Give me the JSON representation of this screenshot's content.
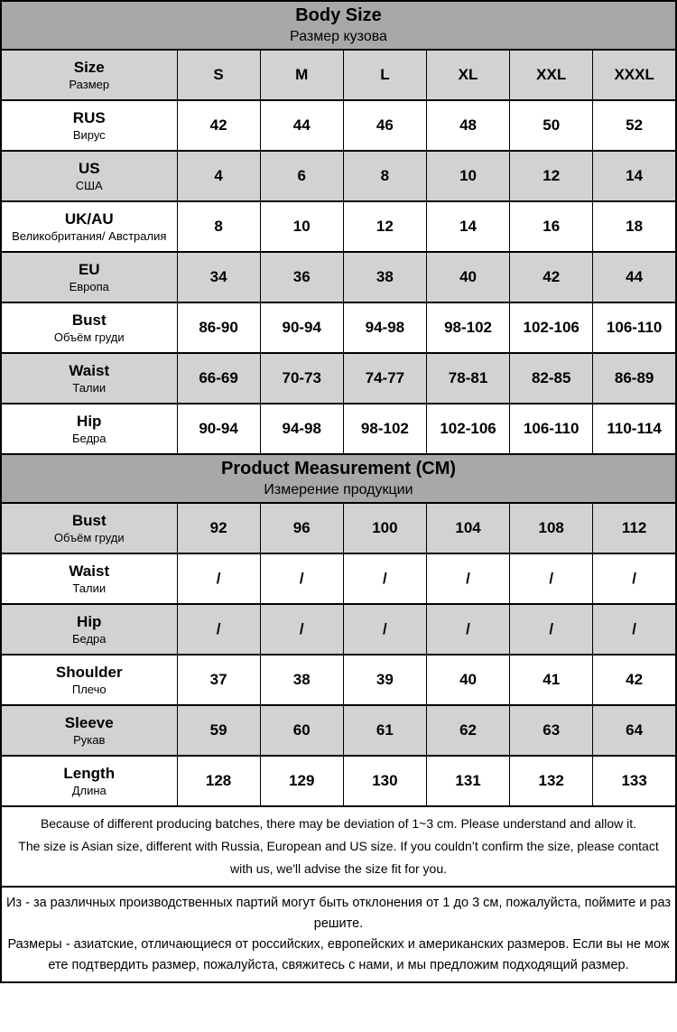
{
  "colors": {
    "header_bg": "#a8a8a8",
    "shaded_bg": "#d2d2d2",
    "plain_bg": "#ffffff",
    "border_color": "#000000",
    "text_color": "#000000"
  },
  "sections": [
    {
      "title": "Body Size",
      "subtitle": "Размер кузова",
      "rows": [
        {
          "label": "Size",
          "sublabel": "Размер",
          "values": [
            "S",
            "M",
            "L",
            "XL",
            "XXL",
            "XXXL"
          ]
        },
        {
          "label": "RUS",
          "sublabel": "Вирус",
          "values": [
            "42",
            "44",
            "46",
            "48",
            "50",
            "52"
          ]
        },
        {
          "label": "US",
          "sublabel": "США",
          "values": [
            "4",
            "6",
            "8",
            "10",
            "12",
            "14"
          ]
        },
        {
          "label": "UK/AU",
          "sublabel": "Великобритания/ Австралия",
          "values": [
            "8",
            "10",
            "12",
            "14",
            "16",
            "18"
          ]
        },
        {
          "label": "EU",
          "sublabel": "Европа",
          "values": [
            "34",
            "36",
            "38",
            "40",
            "42",
            "44"
          ]
        },
        {
          "label": "Bust",
          "sublabel": "Объём груди",
          "values": [
            "86-90",
            "90-94",
            "94-98",
            "98-102",
            "102-106",
            "106-110"
          ]
        },
        {
          "label": "Waist",
          "sublabel": "Талии",
          "values": [
            "66-69",
            "70-73",
            "74-77",
            "78-81",
            "82-85",
            "86-89"
          ]
        },
        {
          "label": "Hip",
          "sublabel": "Бедра",
          "values": [
            "90-94",
            "94-98",
            "98-102",
            "102-106",
            "106-110",
            "110-114"
          ]
        }
      ]
    },
    {
      "title": "Product Measurement (CM)",
      "subtitle": "Измерение продукции",
      "rows": [
        {
          "label": "Bust",
          "sublabel": "Объём груди",
          "values": [
            "92",
            "96",
            "100",
            "104",
            "108",
            "112"
          ]
        },
        {
          "label": "Waist",
          "sublabel": "Талии",
          "values": [
            "/",
            "/",
            "/",
            "/",
            "/",
            "/"
          ]
        },
        {
          "label": "Hip",
          "sublabel": "Бедра",
          "values": [
            "/",
            "/",
            "/",
            "/",
            "/",
            "/"
          ]
        },
        {
          "label": "Shoulder",
          "sublabel": "Плечо",
          "values": [
            "37",
            "38",
            "39",
            "40",
            "41",
            "42"
          ]
        },
        {
          "label": "Sleeve",
          "sublabel": "Рукав",
          "values": [
            "59",
            "60",
            "61",
            "62",
            "63",
            "64"
          ]
        },
        {
          "label": "Length",
          "sublabel": "Длина",
          "values": [
            "128",
            "129",
            "130",
            "131",
            "132",
            "133"
          ]
        }
      ]
    }
  ],
  "notes_en": [
    "Because of different producing batches, there may be deviation of 1~3 cm. Please understand and allow it.",
    "The size is Asian size, different with Russia, European and US size. If you couldn’t confirm the size, please contact with us, we'll advise the size fit for you."
  ],
  "notes_ru": [
    "Из - за различных производственных партий могут быть отклонения от 1 до 3 см, пожалуйста, поймите и разрешите.",
    "Размеры - азиатские, отличающиеся от российских, европейских и американских размеров. Если вы не можете подтвердить размер, пожалуйста, свяжитесь с нами, и мы предложим подходящий размер."
  ]
}
